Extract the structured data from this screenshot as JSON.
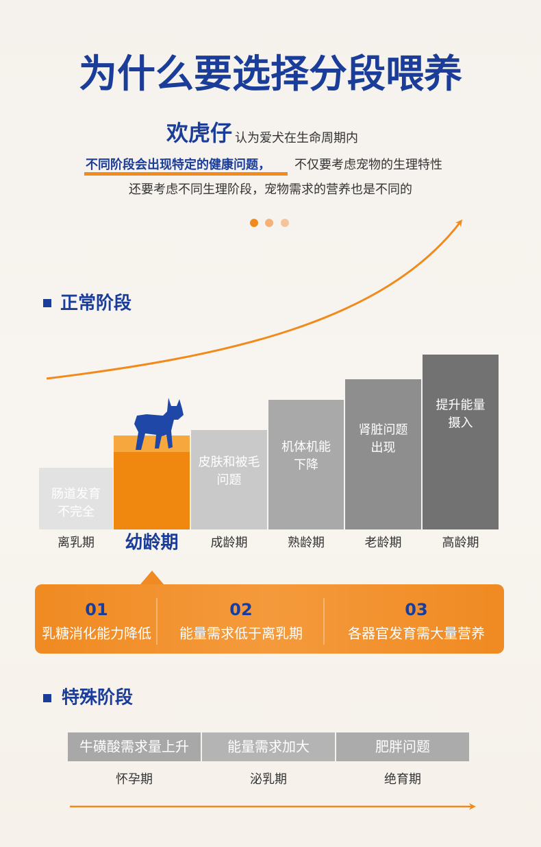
{
  "title": "为什么要选择分段喂养",
  "intro": {
    "brand": "欢虎仔",
    "line1": "认为爱犬在生命周期内",
    "highlight": "不同阶段会出现特定的健康问题，",
    "line2": "不仅要考虑宠物的生理特性",
    "line3": "还要考虑不同生理阶段，宠物需求的营养也是不同的"
  },
  "normal": {
    "heading": "正常阶段",
    "stages": [
      {
        "label": "离乳期",
        "text": [
          "肠道发育",
          "不完全"
        ]
      },
      {
        "label": "幼龄期",
        "text": []
      },
      {
        "label": "成龄期",
        "text": [
          "皮肤和被毛",
          "问题"
        ]
      },
      {
        "label": "熟龄期",
        "text": [
          "机体机能",
          "下降"
        ]
      },
      {
        "label": "老龄期",
        "text": [
          "肾脏问题",
          "出现"
        ]
      },
      {
        "label": "高龄期",
        "text": [
          "提升能量",
          "摄入"
        ]
      }
    ],
    "features": [
      {
        "num": "01",
        "text": "乳糖消化能力降低"
      },
      {
        "num": "02",
        "text": "能量需求低于离乳期"
      },
      {
        "num": "03",
        "text": "各器官发育需大量营养"
      }
    ]
  },
  "special": {
    "heading": "特殊阶段",
    "items": [
      {
        "text": "牛磺酸需求量上升",
        "label": "怀孕期"
      },
      {
        "text": "能量需求加大",
        "label": "泌乳期"
      },
      {
        "text": "肥胖问题",
        "label": "绝育期"
      }
    ]
  }
}
